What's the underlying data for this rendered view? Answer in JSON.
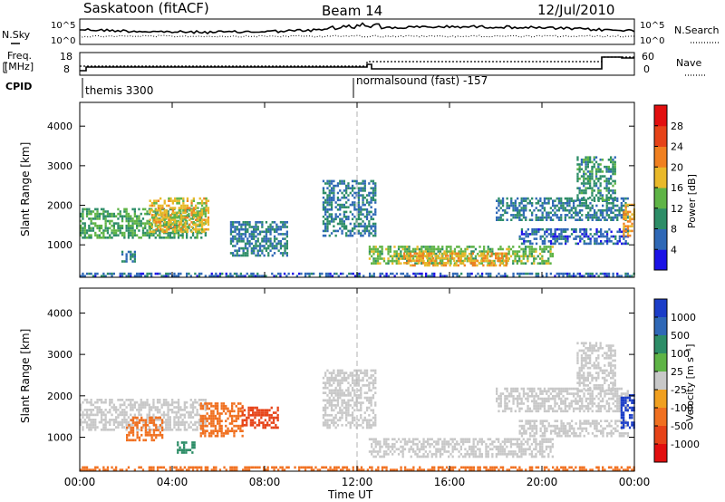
{
  "header": {
    "station": "Saskatoon (fitACF)",
    "beam": "Beam 14",
    "date": "12/Jul/2010"
  },
  "noise_panel": {
    "left_label": "N.Sky",
    "right_label": "N.Search",
    "left_ticks": [
      "10^5",
      "10^0"
    ],
    "right_ticks": [
      "10^5",
      "10^0"
    ]
  },
  "freq_panel": {
    "left_label_line1": "Freq.",
    "left_label_line2": "[MHz]",
    "right_label": "Nave",
    "left_ticks": [
      "18",
      "8"
    ],
    "right_ticks": [
      "60",
      "0"
    ]
  },
  "cpid": {
    "label": "CPID",
    "segments": [
      {
        "text": "themis 3300",
        "start_hour": 0
      },
      {
        "text": "normalsound (fast) -157",
        "start_hour": 12
      }
    ]
  },
  "chart_data": [
    {
      "type": "heatmap",
      "name": "power",
      "ylabel": "Slant Range [km]",
      "ylim": [
        180,
        4600
      ],
      "yticks": [
        "1000",
        "2000",
        "3000",
        "4000"
      ],
      "xlim_hours": [
        0,
        24
      ],
      "colorbar_label": "Power [dB]",
      "colorbar_ticks": [
        "4",
        "8",
        "12",
        "16",
        "20",
        "24",
        "28"
      ],
      "colorbar_colors": [
        "#1b12e6",
        "#2f68b6",
        "#2d8d67",
        "#5fb446",
        "#e9b92a",
        "#f08020",
        "#e64318",
        "#e20f0f"
      ],
      "bands": [
        {
          "t0": 0.0,
          "t1": 5.4,
          "r0": 1150,
          "r1": 1900,
          "level": 12
        },
        {
          "t0": 3.0,
          "t1": 5.6,
          "r0": 1300,
          "r1": 2150,
          "level": 18
        },
        {
          "t0": 12.5,
          "t1": 20.5,
          "r0": 500,
          "r1": 950,
          "level": 14
        },
        {
          "t0": 14.0,
          "t1": 18.5,
          "r0": 450,
          "r1": 800,
          "level": 20
        },
        {
          "t0": 18.0,
          "t1": 23.7,
          "r0": 1600,
          "r1": 2150,
          "level": 8
        },
        {
          "t0": 19.0,
          "t1": 23.7,
          "r0": 1000,
          "r1": 1400,
          "level": 6
        },
        {
          "t0": 21.5,
          "t1": 23.2,
          "r0": 2100,
          "r1": 3200,
          "level": 10
        },
        {
          "t0": 23.5,
          "t1": 24.0,
          "r0": 1200,
          "r1": 2000,
          "level": 20
        },
        {
          "t0": 10.5,
          "t1": 12.8,
          "r0": 1200,
          "r1": 2600,
          "level": 8
        },
        {
          "t0": 6.5,
          "t1": 9.0,
          "r0": 700,
          "r1": 1600,
          "level": 8
        },
        {
          "t0": 1.8,
          "t1": 2.4,
          "r0": 550,
          "r1": 800,
          "level": 8
        },
        {
          "t0": 0.0,
          "t1": 24.0,
          "r0": 180,
          "r1": 300,
          "level": 6
        }
      ]
    },
    {
      "type": "heatmap",
      "name": "velocity",
      "ylabel": "Slant Range [km]",
      "ylim": [
        180,
        4600
      ],
      "yticks": [
        "1000",
        "2000",
        "3000",
        "4000"
      ],
      "xlim_hours": [
        0,
        24
      ],
      "xlabel": "Time UT",
      "xticks": [
        "00:00",
        "04:00",
        "08:00",
        "12:00",
        "16:00",
        "20:00",
        "00:00"
      ],
      "colorbar_label": "Velocity [m s⁻¹]",
      "colorbar_ticks": [
        "1000",
        "500",
        "100",
        "25",
        "-25",
        "-100",
        "-500",
        "-1000"
      ],
      "colorbar_colors": [
        "#1b3dc8",
        "#2f68b6",
        "#2d8d67",
        "#5fb446",
        "#c8c8c8",
        "#f0a020",
        "#f07020",
        "#e64318",
        "#e20f0f"
      ],
      "bands": [
        {
          "t0": 0.0,
          "t1": 5.4,
          "r0": 1150,
          "r1": 1900,
          "level": 0
        },
        {
          "t0": 2.0,
          "t1": 3.6,
          "r0": 900,
          "r1": 1500,
          "level": -300
        },
        {
          "t0": 5.2,
          "t1": 7.0,
          "r0": 1000,
          "r1": 1800,
          "level": -400
        },
        {
          "t0": 7.0,
          "t1": 8.6,
          "r0": 1200,
          "r1": 1700,
          "level": -600
        },
        {
          "t0": 4.2,
          "t1": 5.0,
          "r0": 600,
          "r1": 900,
          "level": 150
        },
        {
          "t0": 12.5,
          "t1": 20.5,
          "r0": 500,
          "r1": 950,
          "level": 0
        },
        {
          "t0": 18.0,
          "t1": 23.7,
          "r0": 1600,
          "r1": 2150,
          "level": 0
        },
        {
          "t0": 19.0,
          "t1": 23.7,
          "r0": 1000,
          "r1": 1400,
          "level": 0
        },
        {
          "t0": 21.5,
          "t1": 23.2,
          "r0": 2100,
          "r1": 3300,
          "level": 0
        },
        {
          "t0": 23.4,
          "t1": 24.0,
          "r0": 1200,
          "r1": 2000,
          "level": 900
        },
        {
          "t0": 10.5,
          "t1": 12.8,
          "r0": 1200,
          "r1": 2600,
          "level": 0
        },
        {
          "t0": 0.0,
          "t1": 24.0,
          "r0": 180,
          "r1": 300,
          "level": -150
        }
      ]
    }
  ]
}
